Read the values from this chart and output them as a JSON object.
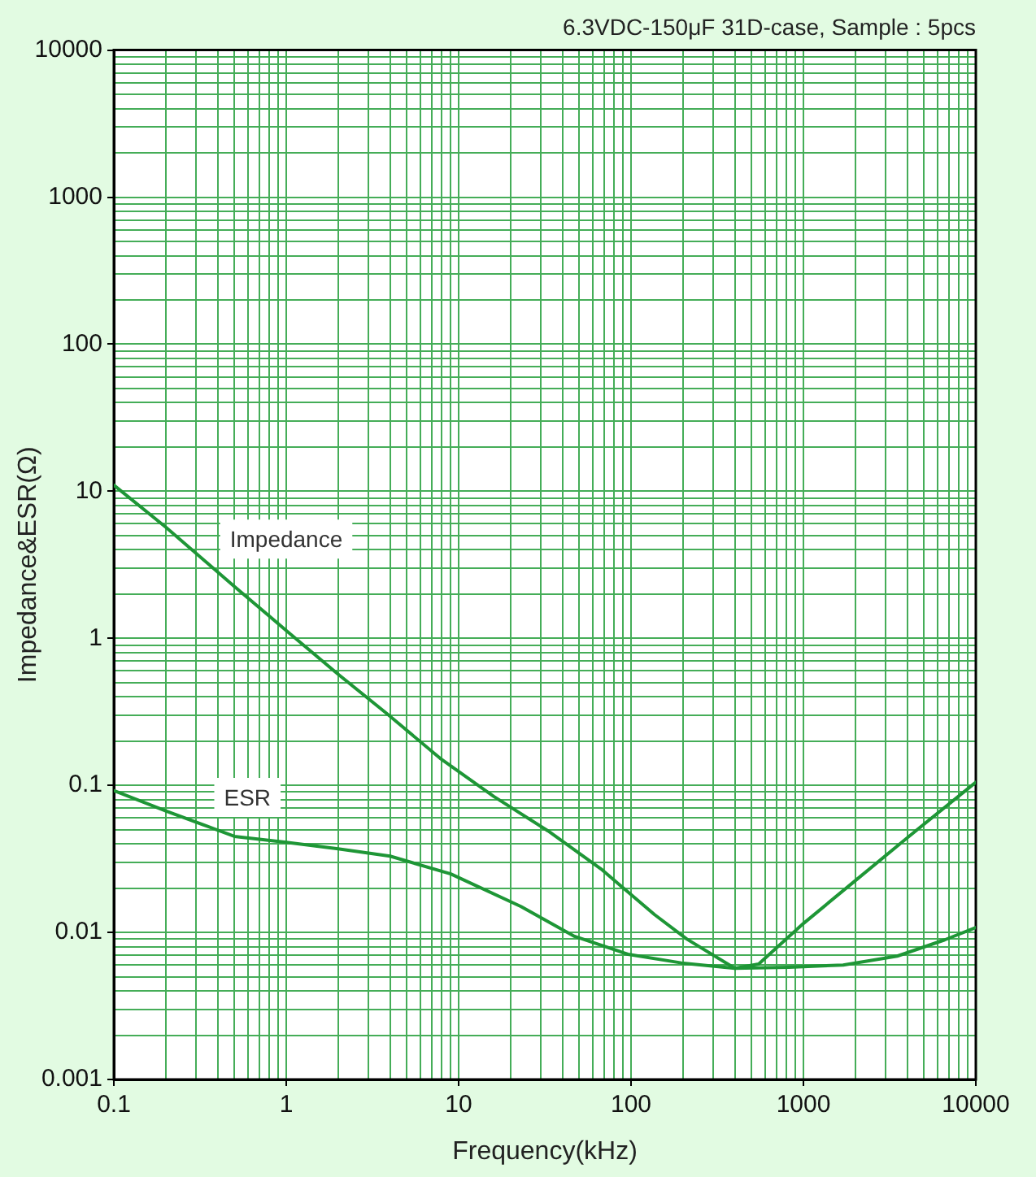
{
  "chart_data": {
    "type": "line",
    "title": "6.3VDC-150μF 31D-case, Sample : 5pcs",
    "xlabel": "Frequency(kHz)",
    "ylabel": "Impedance&ESR(Ω)",
    "log": "xy",
    "grid": true,
    "xlim": [
      0.1,
      10000
    ],
    "ylim": [
      0.001,
      10000
    ],
    "xticks": [
      0.1,
      {
        "value": 0.2,
        "label": null
      },
      {
        "value": 0.3,
        "label": null
      },
      {
        "value": 0.4,
        "label": null
      },
      {
        "value": 0.5,
        "label": null
      },
      {
        "value": 0.6,
        "label": null
      },
      {
        "value": 0.7,
        "label": null
      },
      {
        "value": 0.8,
        "label": null
      },
      {
        "value": 0.9,
        "label": null
      },
      1,
      {
        "value": 2,
        "label": null
      },
      {
        "value": 3,
        "label": null
      },
      {
        "value": 4,
        "label": null
      },
      {
        "value": 5,
        "label": null
      },
      {
        "value": 6,
        "label": null
      },
      {
        "value": 7,
        "label": null
      },
      {
        "value": 8,
        "label": null
      },
      {
        "value": 9,
        "label": null
      },
      10,
      {
        "value": 20,
        "label": null
      },
      {
        "value": 30,
        "label": null
      },
      {
        "value": 40,
        "label": null
      },
      {
        "value": 50,
        "label": null
      },
      {
        "value": 60,
        "label": null
      },
      {
        "value": 70,
        "label": null
      },
      {
        "value": 80,
        "label": null
      },
      {
        "value": 90,
        "label": null
      },
      100,
      {
        "value": 200,
        "label": null
      },
      {
        "value": 300,
        "label": null
      },
      {
        "value": 400,
        "label": null
      },
      {
        "value": 500,
        "label": null
      },
      {
        "value": 600,
        "label": null
      },
      {
        "value": 700,
        "label": null
      },
      {
        "value": 800,
        "label": null
      },
      {
        "value": 900,
        "label": null
      },
      1000,
      {
        "value": 2000,
        "label": null
      },
      {
        "value": 3000,
        "label": null
      },
      {
        "value": 4000,
        "label": null
      },
      {
        "value": 5000,
        "label": null
      },
      {
        "value": 6000,
        "label": null
      },
      {
        "value": 7000,
        "label": null
      },
      {
        "value": 8000,
        "label": null
      },
      {
        "value": 9000,
        "label": null
      },
      10000
    ],
    "yticks": [
      0.001,
      {
        "value": 0.002,
        "label": null
      },
      {
        "value": 0.003,
        "label": null
      },
      {
        "value": 0.004,
        "label": null
      },
      {
        "value": 0.005,
        "label": null
      },
      {
        "value": 0.006,
        "label": null
      },
      {
        "value": 0.007,
        "label": null
      },
      {
        "value": 0.008,
        "label": null
      },
      {
        "value": 0.009,
        "label": null
      },
      0.01,
      {
        "value": 0.02,
        "label": null
      },
      {
        "value": 0.03,
        "label": null
      },
      {
        "value": 0.04,
        "label": null
      },
      {
        "value": 0.05,
        "label": null
      },
      {
        "value": 0.06,
        "label": null
      },
      {
        "value": 0.07,
        "label": null
      },
      {
        "value": 0.08,
        "label": null
      },
      {
        "value": 0.09,
        "label": null
      },
      0.1,
      {
        "value": 0.2,
        "label": null
      },
      {
        "value": 0.3,
        "label": null
      },
      {
        "value": 0.4,
        "label": null
      },
      {
        "value": 0.5,
        "label": null
      },
      {
        "value": 0.6,
        "label": null
      },
      {
        "value": 0.7,
        "label": null
      },
      {
        "value": 0.8,
        "label": null
      },
      {
        "value": 0.9,
        "label": null
      },
      1,
      {
        "value": 2,
        "label": null
      },
      {
        "value": 3,
        "label": null
      },
      {
        "value": 4,
        "label": null
      },
      {
        "value": 5,
        "label": null
      },
      {
        "value": 6,
        "label": null
      },
      {
        "value": 7,
        "label": null
      },
      {
        "value": 8,
        "label": null
      },
      {
        "value": 9,
        "label": null
      },
      10,
      {
        "value": 20,
        "label": null
      },
      {
        "value": 30,
        "label": null
      },
      {
        "value": 40,
        "label": null
      },
      {
        "value": 50,
        "label": null
      },
      {
        "value": 60,
        "label": null
      },
      {
        "value": 70,
        "label": null
      },
      {
        "value": 80,
        "label": null
      },
      {
        "value": 90,
        "label": null
      },
      100,
      {
        "value": 200,
        "label": null
      },
      {
        "value": 300,
        "label": null
      },
      {
        "value": 400,
        "label": null
      },
      {
        "value": 500,
        "label": null
      },
      {
        "value": 600,
        "label": null
      },
      {
        "value": 700,
        "label": null
      },
      {
        "value": 800,
        "label": null
      },
      {
        "value": 900,
        "label": null
      },
      1000,
      {
        "value": 2000,
        "label": null
      },
      {
        "value": 3000,
        "label": null
      },
      {
        "value": 4000,
        "label": null
      },
      {
        "value": 5000,
        "label": null
      },
      {
        "value": 6000,
        "label": null
      },
      {
        "value": 7000,
        "label": null
      },
      {
        "value": 8000,
        "label": null
      },
      {
        "value": 9000,
        "label": null
      },
      10000
    ],
    "series": [
      {
        "name": "Impedance",
        "color": "#1e9636",
        "x": [
          0.1,
          0.2,
          0.5,
          1,
          2,
          3.8,
          7.8,
          16,
          33,
          67,
          137,
          211,
          400,
          550,
          1000,
          2000,
          4000,
          10000
        ],
        "values": [
          11,
          5.7,
          2.25,
          1.13,
          0.57,
          0.31,
          0.153,
          0.084,
          0.049,
          0.027,
          0.0132,
          0.009,
          0.0057,
          0.0061,
          0.0115,
          0.0225,
          0.044,
          0.105
        ]
      },
      {
        "name": "ESR",
        "color": "#1e9636",
        "x": [
          0.1,
          0.2,
          0.5,
          1,
          2,
          4,
          9,
          23,
          47,
          96,
          196,
          400,
          820,
          1700,
          3500,
          6600,
          10000
        ],
        "values": [
          0.092,
          0.067,
          0.045,
          0.041,
          0.037,
          0.033,
          0.025,
          0.015,
          0.0094,
          0.0071,
          0.0062,
          0.0057,
          0.0058,
          0.006,
          0.0069,
          0.0089,
          0.0108
        ]
      }
    ]
  }
}
